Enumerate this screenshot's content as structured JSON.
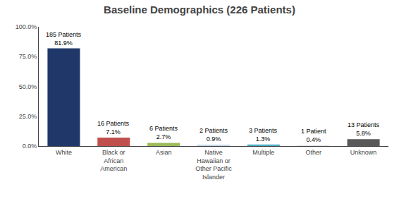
{
  "chart_data": {
    "type": "bar",
    "title": "Baseline Demographics (226 Patients)",
    "categories": [
      "White",
      "Black or\nAfrican\nAmerican",
      "Asian",
      "Native\nHawaiian or\nOther Pacific\nIslander",
      "Multiple",
      "Other",
      "Unknown"
    ],
    "values": [
      81.9,
      7.1,
      2.7,
      0.9,
      1.3,
      0.4,
      5.8
    ],
    "value_labels": [
      "81.9%",
      "7.1%",
      "2.7%",
      "0.9%",
      "1.3%",
      "0.4%",
      "5.8%"
    ],
    "data_labels": true,
    "annotations": [
      "185 Patients",
      "16 Patients",
      "6 Patients",
      "2 Patients",
      "3 Patients",
      "1 Patient",
      "13 Patients"
    ],
    "colors": [
      "#1F3869",
      "#C0504D",
      "#9BBB59",
      "#C0D4E8",
      "#4BACC6",
      "#D9D9D9",
      "#595959"
    ],
    "ylim": [
      0,
      100
    ],
    "yticks": [
      {
        "value": 0,
        "label": "0.0%"
      },
      {
        "value": 25.0,
        "label": "25.0%"
      },
      {
        "value": 50.0,
        "label": "50.0%"
      },
      {
        "value": 75.0,
        "label": "75.0%"
      },
      {
        "value": 100.0,
        "label": "100.0%"
      }
    ],
    "grid": false
  }
}
